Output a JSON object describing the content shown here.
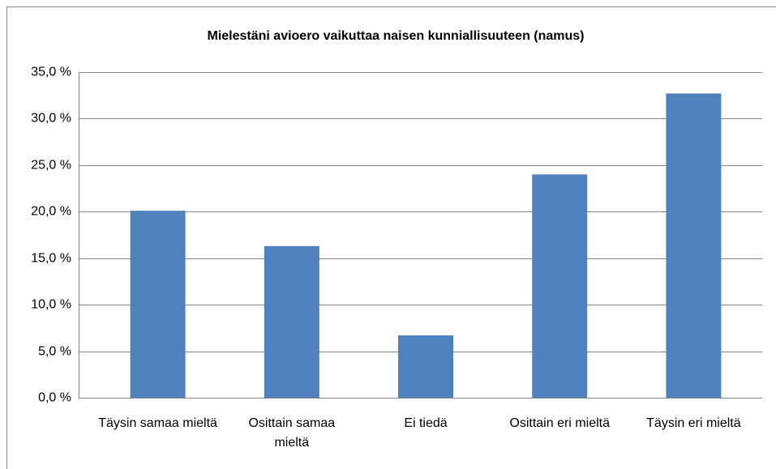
{
  "chart_data": {
    "type": "bar",
    "title": "Mielestäni avioero vaikuttaa naisen kunniallisuuteen (namus)",
    "categories": [
      "Täysin samaa mieltä",
      "Osittain samaa mieltä",
      "Ei tiedä",
      "Osittain eri mieltä",
      "Täysin eri mieltä"
    ],
    "values": [
      20.1,
      16.3,
      6.7,
      24.0,
      32.7
    ],
    "color": "#4f81bd",
    "ylim": [
      0,
      35
    ],
    "yticks": [
      {
        "value": 0,
        "label": "0,0 %"
      },
      {
        "value": 5,
        "label": "5,0 %"
      },
      {
        "value": 10,
        "label": "10,0 %"
      },
      {
        "value": 15,
        "label": "15,0 %"
      },
      {
        "value": 20,
        "label": "20,0 %"
      },
      {
        "value": 25,
        "label": "25,0 %"
      },
      {
        "value": 30,
        "label": "30,0 %"
      },
      {
        "value": 35,
        "label": "35,0 %"
      }
    ],
    "grid": true
  }
}
